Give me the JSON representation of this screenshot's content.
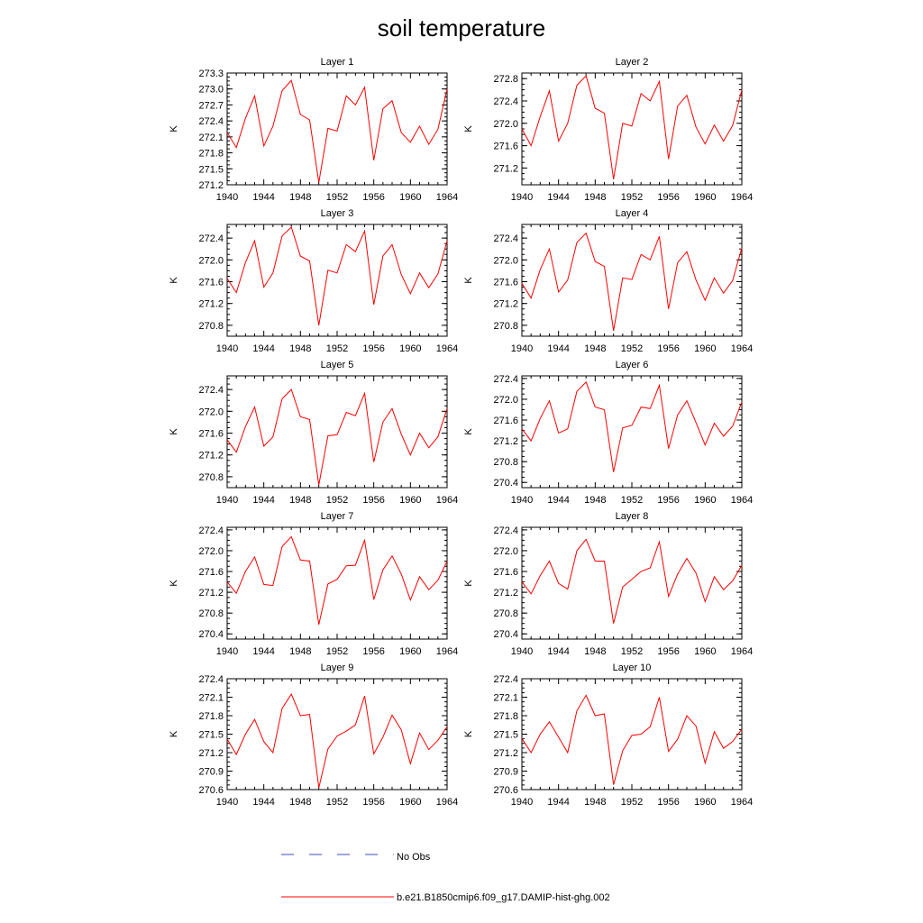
{
  "title": "soil temperature",
  "chart_data": [
    {
      "type": "line",
      "title": "Layer 1",
      "ylabel": "K",
      "xlim": [
        1940,
        1964
      ],
      "ylim": [
        271.2,
        273.3
      ],
      "xticks": [
        1940,
        1944,
        1948,
        1952,
        1956,
        1960,
        1964
      ],
      "yticks": [
        "271.2",
        "271.5",
        "271.8",
        "272.1",
        "272.4",
        "272.7",
        "273.0",
        "273.3"
      ],
      "series": [
        {
          "name": "b.e21.B1850cmip6.f09_g17.DAMIP-hist-ghg.002",
          "x": [
            1940,
            1941,
            1942,
            1943,
            1944,
            1945,
            1946,
            1947,
            1948,
            1949,
            1950,
            1951,
            1952,
            1953,
            1954,
            1955,
            1956,
            1957,
            1958,
            1959,
            1960,
            1961,
            1962,
            1963,
            1964
          ],
          "values": [
            272.18,
            271.9,
            272.45,
            272.87,
            271.93,
            272.3,
            272.97,
            273.16,
            272.52,
            272.42,
            271.24,
            272.26,
            272.21,
            272.87,
            272.7,
            273.03,
            271.66,
            272.63,
            272.78,
            272.18,
            272.0,
            272.3,
            271.96,
            272.24,
            273.0
          ]
        }
      ]
    },
    {
      "type": "line",
      "title": "Layer 2",
      "ylabel": "K",
      "xlim": [
        1940,
        1964
      ],
      "ylim": [
        270.9,
        272.9
      ],
      "xticks": [
        1940,
        1944,
        1948,
        1952,
        1956,
        1960,
        1964
      ],
      "yticks": [
        "271.2",
        "271.6",
        "272.0",
        "272.4",
        "272.8"
      ],
      "series": [
        {
          "name": "b.e21.B1850cmip6.f09_g17.DAMIP-hist-ghg.002",
          "x": [
            1940,
            1941,
            1942,
            1943,
            1944,
            1945,
            1946,
            1947,
            1948,
            1949,
            1950,
            1951,
            1952,
            1953,
            1954,
            1955,
            1956,
            1957,
            1958,
            1959,
            1960,
            1961,
            1962,
            1963,
            1964
          ],
          "values": [
            271.9,
            271.6,
            272.12,
            272.58,
            271.68,
            272.0,
            272.68,
            272.85,
            272.27,
            272.18,
            271.0,
            272.0,
            271.95,
            272.53,
            272.4,
            272.75,
            271.36,
            272.31,
            272.5,
            271.93,
            271.63,
            271.97,
            271.68,
            271.96,
            272.6
          ]
        }
      ]
    },
    {
      "type": "line",
      "title": "Layer 3",
      "ylabel": "K",
      "xlim": [
        1940,
        1964
      ],
      "ylim": [
        270.6,
        272.65
      ],
      "xticks": [
        1940,
        1944,
        1948,
        1952,
        1956,
        1960,
        1964
      ],
      "yticks": [
        "270.8",
        "271.2",
        "271.6",
        "272.0",
        "272.4"
      ],
      "series": [
        {
          "name": "b.e21.B1850cmip6.f09_g17.DAMIP-hist-ghg.002",
          "x": [
            1940,
            1941,
            1942,
            1943,
            1944,
            1945,
            1946,
            1947,
            1948,
            1949,
            1950,
            1951,
            1952,
            1953,
            1954,
            1955,
            1956,
            1957,
            1958,
            1959,
            1960,
            1961,
            1962,
            1963,
            1964
          ],
          "values": [
            271.66,
            271.4,
            271.95,
            272.35,
            271.5,
            271.76,
            272.44,
            272.6,
            272.07,
            271.98,
            270.8,
            271.81,
            271.76,
            272.28,
            272.15,
            272.53,
            271.18,
            272.07,
            272.28,
            271.73,
            271.38,
            271.76,
            271.49,
            271.74,
            272.35
          ]
        }
      ]
    },
    {
      "type": "line",
      "title": "Layer 4",
      "ylabel": "K",
      "xlim": [
        1940,
        1964
      ],
      "ylim": [
        270.6,
        272.65
      ],
      "xticks": [
        1940,
        1944,
        1948,
        1952,
        1956,
        1960,
        1964
      ],
      "yticks": [
        "270.8",
        "271.2",
        "271.6",
        "272.0",
        "272.4"
      ],
      "series": [
        {
          "name": "b.e21.B1850cmip6.f09_g17.DAMIP-hist-ghg.002",
          "x": [
            1940,
            1941,
            1942,
            1943,
            1944,
            1945,
            1946,
            1947,
            1948,
            1949,
            1950,
            1951,
            1952,
            1953,
            1954,
            1955,
            1956,
            1957,
            1958,
            1959,
            1960,
            1961,
            1962,
            1963,
            1964
          ],
          "values": [
            271.57,
            271.3,
            271.82,
            272.2,
            271.41,
            271.63,
            272.32,
            272.49,
            271.97,
            271.88,
            270.7,
            271.67,
            271.64,
            272.1,
            272.0,
            272.43,
            271.1,
            271.95,
            272.15,
            271.63,
            271.26,
            271.67,
            271.39,
            271.62,
            272.22
          ]
        }
      ]
    },
    {
      "type": "line",
      "title": "Layer 5",
      "ylabel": "K",
      "xlim": [
        1940,
        1964
      ],
      "ylim": [
        270.6,
        272.65
      ],
      "xticks": [
        1940,
        1944,
        1948,
        1952,
        1956,
        1960,
        1964
      ],
      "yticks": [
        "270.8",
        "271.2",
        "271.6",
        "272.0",
        "272.4"
      ],
      "series": [
        {
          "name": "b.e21.B1850cmip6.f09_g17.DAMIP-hist-ghg.002",
          "x": [
            1940,
            1941,
            1942,
            1943,
            1944,
            1945,
            1946,
            1947,
            1948,
            1949,
            1950,
            1951,
            1952,
            1953,
            1954,
            1955,
            1956,
            1957,
            1958,
            1959,
            1960,
            1961,
            1962,
            1963,
            1964
          ],
          "values": [
            271.48,
            271.25,
            271.72,
            272.08,
            271.36,
            271.53,
            272.23,
            272.4,
            271.9,
            271.85,
            270.65,
            271.55,
            271.57,
            271.98,
            271.92,
            272.33,
            271.07,
            271.8,
            272.05,
            271.58,
            271.2,
            271.6,
            271.33,
            271.53,
            272.05
          ]
        }
      ]
    },
    {
      "type": "line",
      "title": "Layer 6",
      "ylabel": "K",
      "xlim": [
        1940,
        1964
      ],
      "ylim": [
        270.3,
        272.45
      ],
      "xticks": [
        1940,
        1944,
        1948,
        1952,
        1956,
        1960,
        1964
      ],
      "yticks": [
        "270.4",
        "270.8",
        "271.2",
        "271.6",
        "272.0",
        "272.4"
      ],
      "series": [
        {
          "name": "b.e21.B1850cmip6.f09_g17.DAMIP-hist-ghg.002",
          "x": [
            1940,
            1941,
            1942,
            1943,
            1944,
            1945,
            1946,
            1947,
            1948,
            1949,
            1950,
            1951,
            1952,
            1953,
            1954,
            1955,
            1956,
            1957,
            1958,
            1959,
            1960,
            1961,
            1962,
            1963,
            1964
          ],
          "values": [
            271.43,
            271.2,
            271.63,
            271.97,
            271.35,
            271.43,
            272.15,
            272.33,
            271.85,
            271.8,
            270.6,
            271.45,
            271.5,
            271.85,
            271.82,
            272.27,
            271.05,
            271.7,
            271.97,
            271.55,
            271.12,
            271.54,
            271.29,
            271.48,
            271.95
          ]
        }
      ]
    },
    {
      "type": "line",
      "title": "Layer 7",
      "ylabel": "K",
      "xlim": [
        1940,
        1964
      ],
      "ylim": [
        270.3,
        272.45
      ],
      "xticks": [
        1940,
        1944,
        1948,
        1952,
        1956,
        1960,
        1964
      ],
      "yticks": [
        "270.4",
        "270.8",
        "271.2",
        "271.6",
        "272.0",
        "272.4"
      ],
      "series": [
        {
          "name": "b.e21.B1850cmip6.f09_g17.DAMIP-hist-ghg.002",
          "x": [
            1940,
            1941,
            1942,
            1943,
            1944,
            1945,
            1946,
            1947,
            1948,
            1949,
            1950,
            1951,
            1952,
            1953,
            1954,
            1955,
            1956,
            1957,
            1958,
            1959,
            1960,
            1961,
            1962,
            1963,
            1964
          ],
          "values": [
            271.4,
            271.18,
            271.6,
            271.88,
            271.35,
            271.33,
            272.08,
            272.27,
            271.82,
            271.8,
            270.58,
            271.36,
            271.45,
            271.71,
            271.72,
            272.2,
            271.06,
            271.63,
            271.9,
            271.55,
            271.05,
            271.5,
            271.25,
            271.43,
            271.8
          ]
        }
      ]
    },
    {
      "type": "line",
      "title": "Layer 8",
      "ylabel": "K",
      "xlim": [
        1940,
        1964
      ],
      "ylim": [
        270.3,
        272.45
      ],
      "xticks": [
        1940,
        1944,
        1948,
        1952,
        1956,
        1960,
        1964
      ],
      "yticks": [
        "270.4",
        "270.8",
        "271.2",
        "271.6",
        "272.0",
        "272.4"
      ],
      "series": [
        {
          "name": "b.e21.B1850cmip6.f09_g17.DAMIP-hist-ghg.002",
          "x": [
            1940,
            1941,
            1942,
            1943,
            1944,
            1945,
            1946,
            1947,
            1948,
            1949,
            1950,
            1951,
            1952,
            1953,
            1954,
            1955,
            1956,
            1957,
            1958,
            1959,
            1960,
            1961,
            1962,
            1963,
            1964
          ],
          "values": [
            271.4,
            271.17,
            271.52,
            271.8,
            271.37,
            271.26,
            272.0,
            272.22,
            271.8,
            271.8,
            270.6,
            271.3,
            271.45,
            271.6,
            271.67,
            272.17,
            271.12,
            271.55,
            271.85,
            271.57,
            271.02,
            271.5,
            271.25,
            271.42,
            271.72
          ]
        }
      ]
    },
    {
      "type": "line",
      "title": "Layer 9",
      "ylabel": "K",
      "xlim": [
        1940,
        1964
      ],
      "ylim": [
        270.6,
        272.4
      ],
      "xticks": [
        1940,
        1944,
        1948,
        1952,
        1956,
        1960,
        1964
      ],
      "yticks": [
        "270.6",
        "270.9",
        "271.2",
        "271.5",
        "271.8",
        "272.1",
        "272.4"
      ],
      "series": [
        {
          "name": "b.e21.B1850cmip6.f09_g17.DAMIP-hist-ghg.002",
          "x": [
            1940,
            1941,
            1942,
            1943,
            1944,
            1945,
            1946,
            1947,
            1948,
            1949,
            1950,
            1951,
            1952,
            1953,
            1954,
            1955,
            1956,
            1957,
            1958,
            1959,
            1960,
            1961,
            1962,
            1963,
            1964
          ],
          "values": [
            271.42,
            271.17,
            271.5,
            271.74,
            271.38,
            271.2,
            271.92,
            272.15,
            271.8,
            271.82,
            270.63,
            271.26,
            271.47,
            271.55,
            271.65,
            272.12,
            271.18,
            271.45,
            271.81,
            271.57,
            271.02,
            271.52,
            271.25,
            271.4,
            271.62
          ]
        }
      ]
    },
    {
      "type": "line",
      "title": "Layer 10",
      "ylabel": "K",
      "xlim": [
        1940,
        1964
      ],
      "ylim": [
        270.6,
        272.4
      ],
      "xticks": [
        1940,
        1944,
        1948,
        1952,
        1956,
        1960,
        1964
      ],
      "yticks": [
        "270.6",
        "270.9",
        "271.2",
        "271.5",
        "271.8",
        "272.1",
        "272.4"
      ],
      "series": [
        {
          "name": "b.e21.B1850cmip6.f09_g17.DAMIP-hist-ghg.002",
          "x": [
            1940,
            1941,
            1942,
            1943,
            1944,
            1945,
            1946,
            1947,
            1948,
            1949,
            1950,
            1951,
            1952,
            1953,
            1954,
            1955,
            1956,
            1957,
            1958,
            1959,
            1960,
            1961,
            1962,
            1963,
            1964
          ],
          "values": [
            271.43,
            271.2,
            271.5,
            271.7,
            271.45,
            271.2,
            271.88,
            272.13,
            271.8,
            271.83,
            270.68,
            271.23,
            271.48,
            271.5,
            271.62,
            272.1,
            271.22,
            271.42,
            271.8,
            271.63,
            271.03,
            271.54,
            271.27,
            271.38,
            271.58
          ]
        }
      ]
    }
  ],
  "legend": {
    "items": [
      {
        "label": "No Obs",
        "color": "#3d4db8",
        "style": "dashed"
      },
      {
        "label": "b.e21.B1850cmip6.f09_g17.DAMIP-hist-ghg.002",
        "color": "#ff0000",
        "style": "solid"
      }
    ]
  }
}
